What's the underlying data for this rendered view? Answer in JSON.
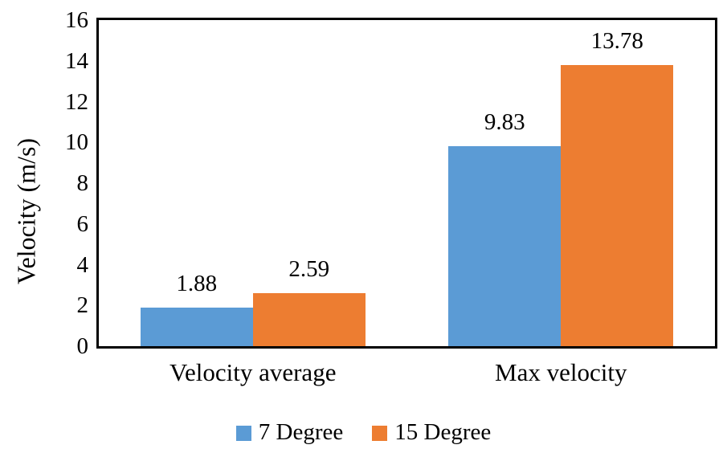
{
  "figure": {
    "background": "#FFFFFF"
  },
  "chart_data": {
    "type": "bar",
    "title": "",
    "categories": [
      "Velocity average",
      "Max velocity"
    ],
    "series": [
      {
        "name": "7 Degree",
        "color": "#5B9BD5",
        "values": [
          1.88,
          9.83
        ],
        "labels": [
          "1.88",
          "9.83"
        ]
      },
      {
        "name": "15 Degree",
        "color": "#ED7D31",
        "values": [
          2.59,
          13.78
        ],
        "labels": [
          "2.59",
          "13.78"
        ]
      }
    ],
    "xlabel": "",
    "ylabel": "Velocity (m/s)",
    "ylim": [
      0,
      16
    ],
    "yticks": [
      0,
      2,
      4,
      6,
      8,
      10,
      12,
      14,
      16
    ],
    "grid": false,
    "legend": {
      "position": "bottom",
      "entries": [
        "7 Degree",
        "15 Degree"
      ]
    },
    "axis_color": "#000000",
    "text_color": "#000000"
  }
}
